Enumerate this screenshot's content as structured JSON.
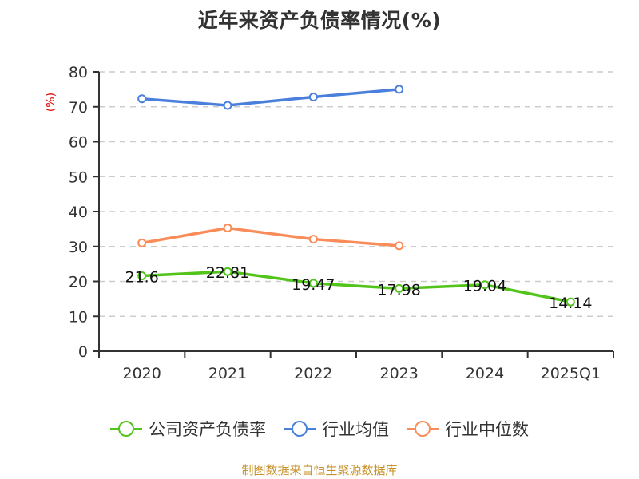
{
  "title": "近年来资产负债率情况(%)",
  "source": "制图数据来自恒生聚源数据库",
  "legend": [
    {
      "label": "公司资产负债率",
      "color": "#52c41a"
    },
    {
      "label": "行业均值",
      "color": "#4a7fdc"
    },
    {
      "label": "行业中位数",
      "color": "#fa8c5a"
    }
  ],
  "chart_data": {
    "type": "line",
    "title": "近年来资产负债率情况(%)",
    "xlabel": "",
    "ylabel": "(%)",
    "ylim": [
      0,
      80
    ],
    "yticks": [
      0,
      10,
      20,
      30,
      40,
      50,
      60,
      70,
      80
    ],
    "grid": "horizontal dashed",
    "legend_position": "bottom",
    "categories": [
      "2020",
      "2021",
      "2022",
      "2023",
      "2024",
      "2025Q1"
    ],
    "series": [
      {
        "name": "公司资产负债率",
        "color": "#52c41a",
        "values": [
          21.6,
          22.81,
          19.47,
          17.98,
          19.04,
          14.14
        ],
        "labels": [
          "21.6",
          "22.81",
          "19.47",
          "17.98",
          "19.04",
          "14.14"
        ]
      },
      {
        "name": "行业均值",
        "color": "#4a7fdc",
        "values": [
          72.3,
          70.4,
          72.8,
          75.0,
          null,
          null
        ]
      },
      {
        "name": "行业中位数",
        "color": "#fa8c5a",
        "values": [
          31.0,
          35.3,
          32.1,
          30.2,
          null,
          null
        ]
      }
    ]
  }
}
